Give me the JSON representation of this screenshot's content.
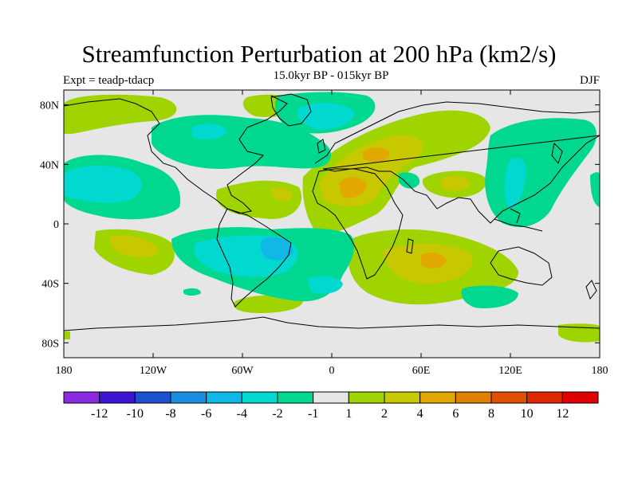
{
  "title": "Streamfunction Perturbation at 200 hPa (km2/s)",
  "subtitle": "15.0kyr BP - 015kyr BP",
  "left_string": "Expt = teadp-tdacp",
  "right_string": "DJF",
  "lat_ticks": [
    "80N",
    "40N",
    "0",
    "40S",
    "80S"
  ],
  "lon_ticks": [
    "180",
    "120W",
    "60W",
    "0",
    "60E",
    "120E",
    "180"
  ],
  "colorbar": {
    "labels": [
      "-12",
      "-10",
      "-8",
      "-6",
      "-4",
      "-2",
      "-1",
      "1",
      "2",
      "4",
      "6",
      "8",
      "10",
      "12"
    ],
    "colors": [
      "#8a2be2",
      "#3c14d2",
      "#1e50d2",
      "#1a8fe0",
      "#10b8e8",
      "#00d8d0",
      "#00d890",
      "#e6e6e6",
      "#9fd400",
      "#c8c800",
      "#e0a800",
      "#e08000",
      "#e05000",
      "#e02800",
      "#e00000"
    ]
  },
  "field_colors": {
    "pos1": "#9fd400",
    "pos2": "#c8c800",
    "pos3": "#e0a800",
    "neg1": "#00d890",
    "neg2": "#00d8d0",
    "neg3": "#10b8e8",
    "background": "#e6e6e6"
  }
}
